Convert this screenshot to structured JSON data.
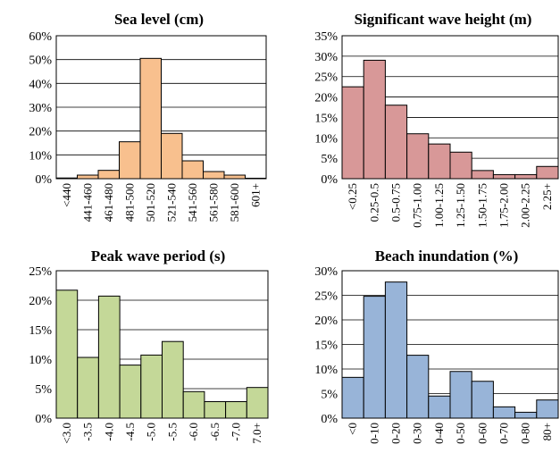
{
  "chart_data": [
    {
      "type": "bar",
      "title": "Sea level (cm)",
      "categories": [
        "<440",
        "441-460",
        "461-480",
        "481-500",
        "501-520",
        "521-540",
        "541-560",
        "561-580",
        "581-600",
        "601+"
      ],
      "values": [
        0.3,
        1.5,
        3.5,
        15.5,
        50.5,
        19,
        7.5,
        3,
        1.5,
        0.2
      ],
      "value_unit": "%",
      "yticks": [
        "0%",
        "10%",
        "20%",
        "30%",
        "40%",
        "50%",
        "60%"
      ],
      "ylim": [
        0,
        60
      ],
      "color": "#f8c08e",
      "grid": true
    },
    {
      "type": "bar",
      "title": "Significant wave height (m)",
      "categories": [
        "<0.25",
        "0.25-0.5",
        "0.5-0.75",
        "0.75-1.00",
        "1.00-1.25",
        "1.25-1.50",
        "1.50-1.75",
        "1.75-2.00",
        "2.00-2.25",
        "2.25+"
      ],
      "values": [
        22.5,
        29,
        18,
        11,
        8.5,
        6.5,
        2,
        1,
        1,
        3
      ],
      "value_unit": "%",
      "yticks": [
        "0%",
        "5%",
        "10%",
        "15%",
        "20%",
        "25%",
        "30%",
        "35%"
      ],
      "ylim": [
        0,
        35
      ],
      "color": "#d89898",
      "grid": true
    },
    {
      "type": "bar",
      "title": "Peak wave period (s)",
      "categories": [
        "<3.0",
        "-3.5",
        "-4.0",
        "-4.5",
        "-5.0",
        "-5.5",
        "-6.0",
        "-6.5",
        "-7.0",
        "7.0+"
      ],
      "values": [
        21.7,
        10.3,
        20.7,
        9,
        10.7,
        13,
        4.5,
        2.8,
        2.8,
        5.2
      ],
      "value_unit": "%",
      "yticks": [
        "0%",
        "5%",
        "10%",
        "15%",
        "20%",
        "25%"
      ],
      "ylim": [
        0,
        25
      ],
      "color": "#c4d898",
      "grid": true
    },
    {
      "type": "bar",
      "title": "Beach inundation (%)",
      "categories": [
        "<0",
        "0-10",
        "0-20",
        "0-30",
        "0-40",
        "0-50",
        "0-60",
        "0-70",
        "0-80",
        "80+"
      ],
      "values": [
        8.3,
        24.8,
        27.7,
        12.8,
        4.5,
        9.5,
        7.5,
        2.3,
        1.2,
        3.7
      ],
      "value_unit": "%",
      "yticks": [
        "0%",
        "5%",
        "10%",
        "15%",
        "20%",
        "25%",
        "30%"
      ],
      "ylim": [
        0,
        30
      ],
      "color": "#98b4d8",
      "grid": true
    }
  ]
}
